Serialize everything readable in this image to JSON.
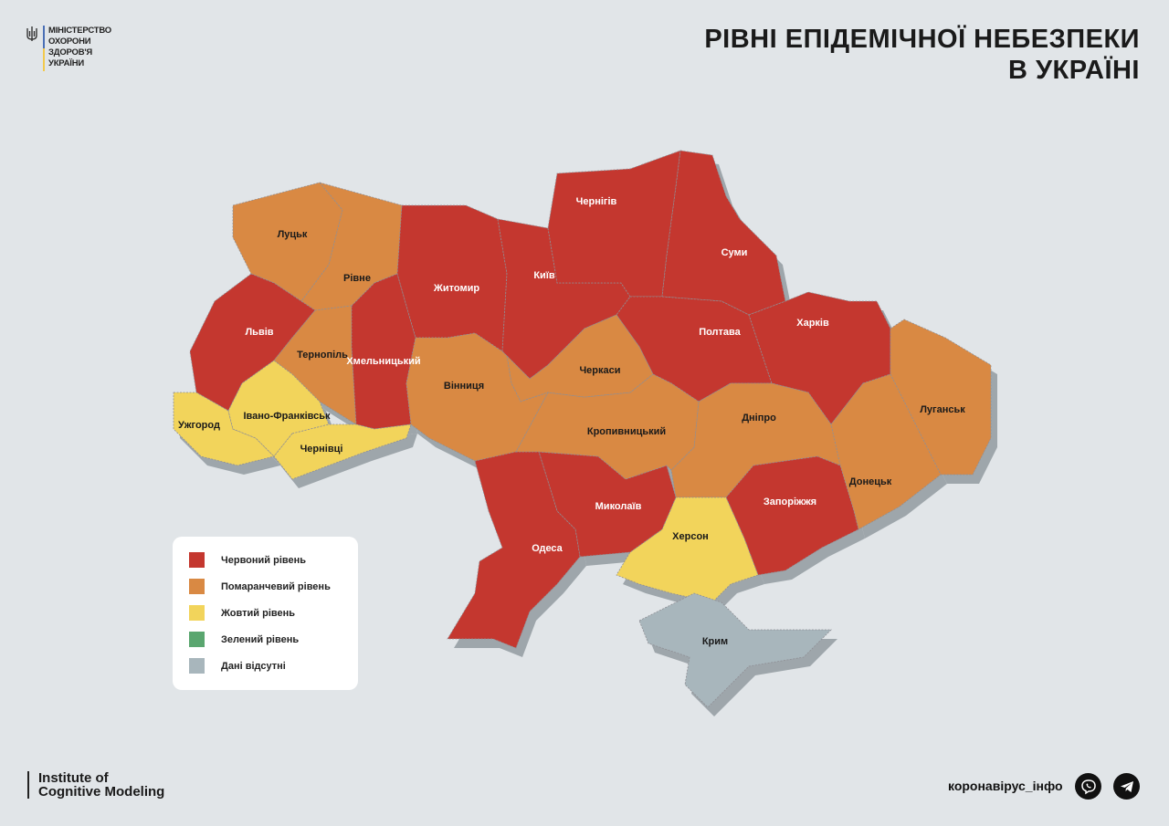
{
  "logo": {
    "text": "МІНІСТЕРСТВО\nОХОРОНИ\nЗДОРОВ'Я\nУКРАЇНИ"
  },
  "title": {
    "line1": "РІВНІ ЕПІДЕМІЧНОЇ НЕБЕЗПЕКИ",
    "line2": "В УКРАЇНІ"
  },
  "levels": {
    "red": {
      "label": "Червоний рівень",
      "color": "#c4372f"
    },
    "orange": {
      "label": "Помаранчевий рівень",
      "color": "#d98943"
    },
    "yellow": {
      "label": "Жовтий рівень",
      "color": "#f2d45b"
    },
    "green": {
      "label": "Зелений рівень",
      "color": "#5aa66f"
    },
    "gray": {
      "label": "Дані відсутні",
      "color": "#a8b6bc"
    }
  },
  "regions": [
    {
      "id": "volyn",
      "label": "Луцьк",
      "level": "orange"
    },
    {
      "id": "rivne",
      "label": "Рівне",
      "level": "orange"
    },
    {
      "id": "lviv",
      "label": "Львів",
      "level": "red"
    },
    {
      "id": "ternopil",
      "label": "Тернопіль",
      "level": "orange"
    },
    {
      "id": "khmelnytskyi",
      "label": "Хмельницький",
      "level": "red"
    },
    {
      "id": "zhytomyr",
      "label": "Житомир",
      "level": "red"
    },
    {
      "id": "kyiv",
      "label": "Київ",
      "level": "red"
    },
    {
      "id": "chernihiv",
      "label": "Чернігів",
      "level": "red"
    },
    {
      "id": "sumy",
      "label": "Суми",
      "level": "red"
    },
    {
      "id": "poltava",
      "label": "Полтава",
      "level": "red"
    },
    {
      "id": "kharkiv",
      "label": "Харків",
      "level": "red"
    },
    {
      "id": "luhansk",
      "label": "Луганськ",
      "level": "orange"
    },
    {
      "id": "donetsk",
      "label": "Донецьк",
      "level": "orange"
    },
    {
      "id": "dnipro",
      "label": "Дніпро",
      "level": "orange"
    },
    {
      "id": "zaporizhzhia",
      "label": "Запоріжжя",
      "level": "red"
    },
    {
      "id": "kherson",
      "label": "Херсон",
      "level": "yellow"
    },
    {
      "id": "crimea",
      "label": "Крим",
      "level": "gray"
    },
    {
      "id": "mykolaiv",
      "label": "Миколаїв",
      "level": "red"
    },
    {
      "id": "odesa",
      "label": "Одеса",
      "level": "red"
    },
    {
      "id": "kirovohrad",
      "label": "Кропивницький",
      "level": "orange"
    },
    {
      "id": "cherkasy",
      "label": "Черкаси",
      "level": "orange"
    },
    {
      "id": "vinnytsia",
      "label": "Вінниця",
      "level": "orange"
    },
    {
      "id": "zakarpattia",
      "label": "Ужгород",
      "level": "yellow"
    },
    {
      "id": "ivano-frankivsk",
      "label": "Івано-Франківськ",
      "level": "yellow"
    },
    {
      "id": "chernivtsi",
      "label": "Чернівці",
      "level": "yellow"
    }
  ],
  "legend_order": [
    "red",
    "orange",
    "yellow",
    "green",
    "gray"
  ],
  "footer": {
    "institute": "Institute of\nCognitive Modeling",
    "site": "коронавірус_інфо",
    "social": [
      "viber-icon",
      "telegram-icon"
    ]
  }
}
